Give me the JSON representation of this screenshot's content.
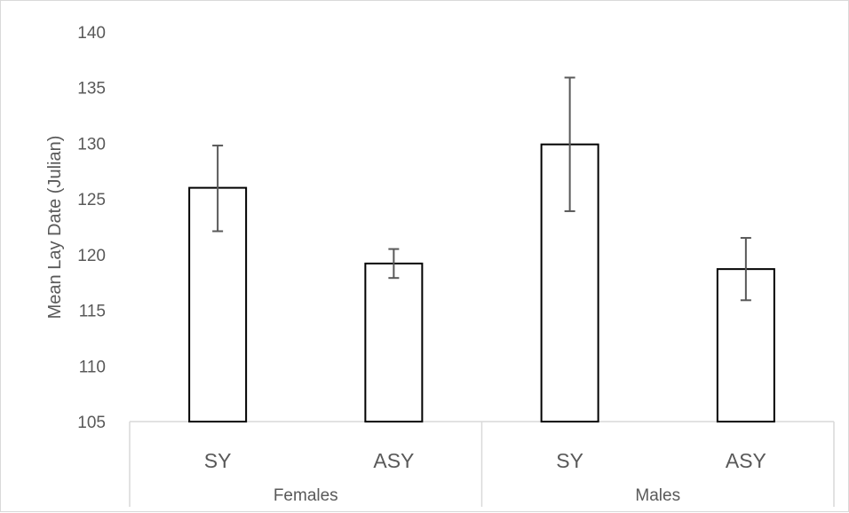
{
  "chart_data": {
    "type": "bar",
    "ylabel": "Mean Lay Date (Julian)",
    "xlabel": "",
    "ylim": [
      105,
      140
    ],
    "y_ticks": [
      105,
      110,
      115,
      120,
      125,
      130,
      135,
      140
    ],
    "grid": false,
    "legend": "none",
    "groups": [
      {
        "label": "Females",
        "categories": [
          "SY",
          "ASY"
        ]
      },
      {
        "label": "Males",
        "categories": [
          "SY",
          "ASY"
        ]
      }
    ],
    "categories": [
      "SY",
      "ASY",
      "SY",
      "ASY"
    ],
    "values": [
      126.0,
      119.2,
      129.9,
      118.7
    ],
    "error_low": [
      122.1,
      117.9,
      123.9,
      115.9
    ],
    "error_high": [
      129.8,
      120.5,
      135.9,
      121.5
    ],
    "colors": {
      "bar_fill": "#ffffff",
      "bar_stroke": "#000000",
      "error_bar": "#595959",
      "axis": "#d9d9d9",
      "text": "#595959"
    }
  }
}
